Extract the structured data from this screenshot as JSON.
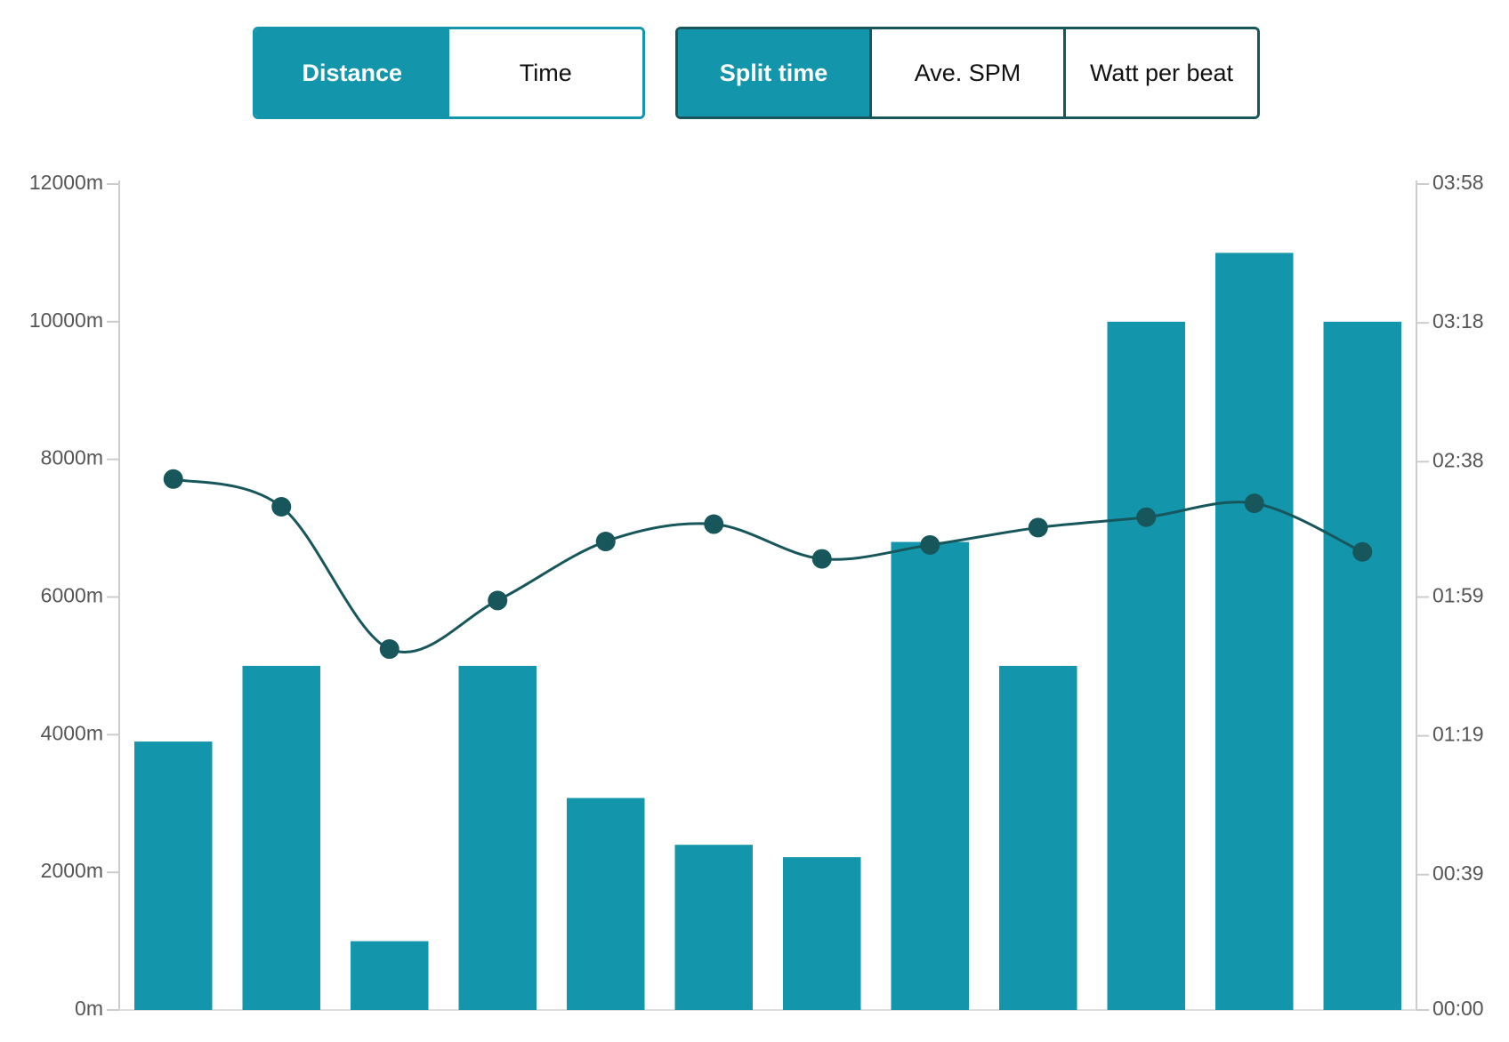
{
  "controls": {
    "groups": [
      {
        "buttons": [
          {
            "label": "Distance",
            "active": true
          },
          {
            "label": "Time",
            "active": false
          }
        ]
      },
      {
        "buttons": [
          {
            "label": "Split time",
            "active": true
          },
          {
            "label": "Ave. SPM",
            "active": false
          },
          {
            "label": "Watt per beat",
            "active": false
          }
        ]
      }
    ]
  },
  "chart_data": {
    "type": "bar",
    "series": [
      {
        "type": "bar",
        "color": "#1395ab",
        "values": [
          3900,
          5000,
          1000,
          5000,
          3080,
          2400,
          2220,
          6800,
          5000,
          10000,
          11000,
          10000
        ]
      },
      {
        "type": "line",
        "axis": "y2",
        "color": "#17575c",
        "values": [
          153,
          145,
          104,
          118,
          135,
          140,
          130,
          134,
          139,
          142,
          146,
          132
        ]
      }
    ],
    "ylim": [
      0,
      12000
    ],
    "yticks": [
      {
        "value": 0,
        "label": "0m"
      },
      {
        "value": 2000,
        "label": "2000m"
      },
      {
        "value": 4000,
        "label": "4000m"
      },
      {
        "value": 6000,
        "label": "6000m"
      },
      {
        "value": 8000,
        "label": "8000m"
      },
      {
        "value": 10000,
        "label": "10000m"
      },
      {
        "value": 12000,
        "label": "12000m"
      }
    ],
    "y2lim": [
      0,
      238
    ],
    "y2ticks": [
      {
        "value": 0,
        "label": "00:00"
      },
      {
        "value": 39,
        "label": "00:39"
      },
      {
        "value": 79,
        "label": "01:19"
      },
      {
        "value": 119,
        "label": "01:59"
      },
      {
        "value": 158,
        "label": "02:38"
      },
      {
        "value": 198,
        "label": "03:18"
      },
      {
        "value": 238,
        "label": "03:58"
      }
    ]
  }
}
